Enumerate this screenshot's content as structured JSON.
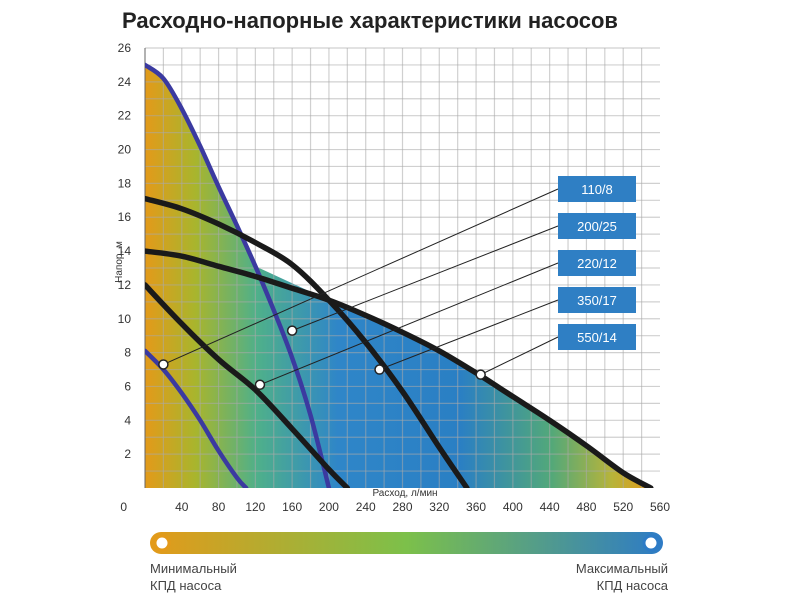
{
  "title": "Расходно-напорные характеристики насосов",
  "efficiency_scale": {
    "min_label": [
      "Минимальный",
      "КПД насоса"
    ],
    "max_label": [
      "Максимальный",
      "КПД насоса"
    ],
    "min_color": "#e39a1a",
    "mid_color": "#7cc04a",
    "max_color": "#2d7bc6"
  },
  "chart_data": {
    "type": "line",
    "xlabel": "Расход, л/мин",
    "ylabel": "Напор, м",
    "xlim": [
      0,
      560
    ],
    "ylim": [
      0,
      26
    ],
    "x_ticks": [
      40,
      80,
      120,
      160,
      200,
      240,
      280,
      320,
      360,
      400,
      440,
      480,
      520,
      560
    ],
    "y_ticks": [
      2,
      4,
      6,
      8,
      10,
      12,
      14,
      16,
      18,
      20,
      22,
      24,
      26
    ],
    "origin_label": "0",
    "grid": true,
    "colors": {
      "line_110": "#3b3aa0",
      "line_200": "#3b3aa0",
      "line_black": "#1a1a1a",
      "legend_box": "#2f7fc4",
      "marker_fill": "#ffffff"
    },
    "series": [
      {
        "name": "110/8",
        "color_key": "line_110",
        "x": [
          0,
          20,
          40,
          60,
          80,
          100,
          110
        ],
        "y": [
          8.1,
          7.0,
          5.6,
          4.0,
          2.2,
          0.6,
          0
        ]
      },
      {
        "name": "200/25",
        "color_key": "line_200",
        "x": [
          0,
          20,
          40,
          60,
          80,
          100,
          120,
          140,
          160,
          180,
          200
        ],
        "y": [
          25,
          24.2,
          22.4,
          20.2,
          17.8,
          15.5,
          13.1,
          10.5,
          7.7,
          4.3,
          0
        ]
      },
      {
        "name": "220/12",
        "color_key": "line_black",
        "x": [
          0,
          40,
          80,
          120,
          160,
          200,
          220
        ],
        "y": [
          12,
          9.7,
          7.6,
          5.8,
          3.5,
          1.1,
          0
        ]
      },
      {
        "name": "350/17",
        "color_key": "line_black",
        "x": [
          0,
          40,
          80,
          120,
          160,
          200,
          240,
          280,
          320,
          350
        ],
        "y": [
          17.1,
          16.5,
          15.6,
          14.5,
          13.2,
          11.1,
          8.6,
          5.7,
          2.4,
          0
        ]
      },
      {
        "name": "550/14",
        "color_key": "line_black",
        "x": [
          0,
          40,
          80,
          120,
          160,
          200,
          240,
          280,
          320,
          360,
          400,
          440,
          480,
          520,
          550
        ],
        "y": [
          14.0,
          13.7,
          13.1,
          12.5,
          11.8,
          11.1,
          10.2,
          9.2,
          8.1,
          6.8,
          5.4,
          4.0,
          2.5,
          0.9,
          0
        ]
      }
    ],
    "legend": [
      "110/8",
      "200/25",
      "220/12",
      "350/17",
      "550/14"
    ],
    "legend_placement": "right",
    "markers": [
      {
        "series": "110/8",
        "x": 20,
        "y": 7.3
      },
      {
        "series": "200/25",
        "x": 160,
        "y": 9.3
      },
      {
        "series": "220/12",
        "x": 125,
        "y": 6.1
      },
      {
        "series": "350/17",
        "x": 255,
        "y": 7.0
      },
      {
        "series": "550/14",
        "x": 365,
        "y": 6.7
      }
    ]
  }
}
